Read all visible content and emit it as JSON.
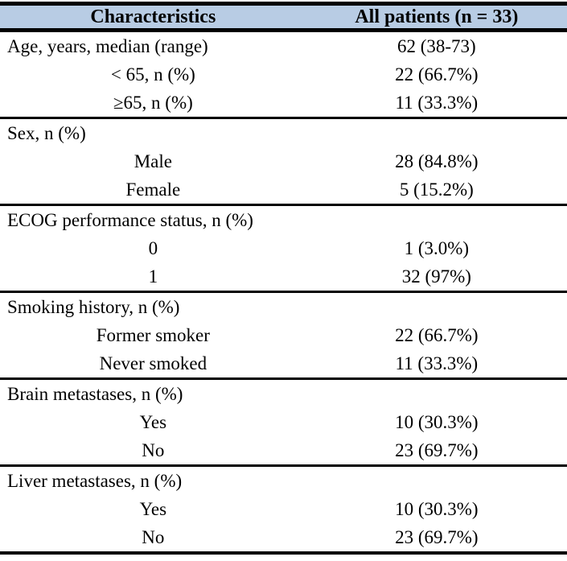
{
  "table": {
    "columns": {
      "characteristics": "Characteristics",
      "all_patients": "All patients (n = 33)"
    },
    "style": {
      "header_bg": "#b8cce4",
      "border_color": "#000000",
      "text_color": "#000000"
    },
    "sections": [
      {
        "rows": [
          {
            "label": "Age, years, median (range)",
            "value": "62 (38-73)",
            "align": "left"
          },
          {
            "label": "< 65, n (%)",
            "value": "22 (66.7%)",
            "align": "center"
          },
          {
            "label": "≥65, n (%)",
            "value": "11 (33.3%)",
            "align": "center"
          }
        ]
      },
      {
        "rows": [
          {
            "label": "Sex, n (%)",
            "value": "",
            "align": "left"
          },
          {
            "label": "Male",
            "value": "28 (84.8%)",
            "align": "center"
          },
          {
            "label": "Female",
            "value": "5 (15.2%)",
            "align": "center"
          }
        ]
      },
      {
        "rows": [
          {
            "label": "ECOG performance status, n (%)",
            "value": "",
            "align": "left"
          },
          {
            "label": "0",
            "value": "1 (3.0%)",
            "align": "center"
          },
          {
            "label": "1",
            "value": "32 (97%)",
            "align": "center"
          }
        ]
      },
      {
        "rows": [
          {
            "label": "Smoking history, n (%)",
            "value": "",
            "align": "left"
          },
          {
            "label": "Former smoker",
            "value": "22 (66.7%)",
            "align": "center"
          },
          {
            "label": "Never smoked",
            "value": "11 (33.3%)",
            "align": "center"
          }
        ]
      },
      {
        "rows": [
          {
            "label": "Brain metastases, n (%)",
            "value": "",
            "align": "left"
          },
          {
            "label": "Yes",
            "value": "10 (30.3%)",
            "align": "center"
          },
          {
            "label": "No",
            "value": "23 (69.7%)",
            "align": "center"
          }
        ]
      },
      {
        "rows": [
          {
            "label": "Liver metastases, n (%)",
            "value": "",
            "align": "left"
          },
          {
            "label": "Yes",
            "value": "10 (30.3%)",
            "align": "center"
          },
          {
            "label": "No",
            "value": "23 (69.7%)",
            "align": "center"
          }
        ]
      }
    ]
  }
}
